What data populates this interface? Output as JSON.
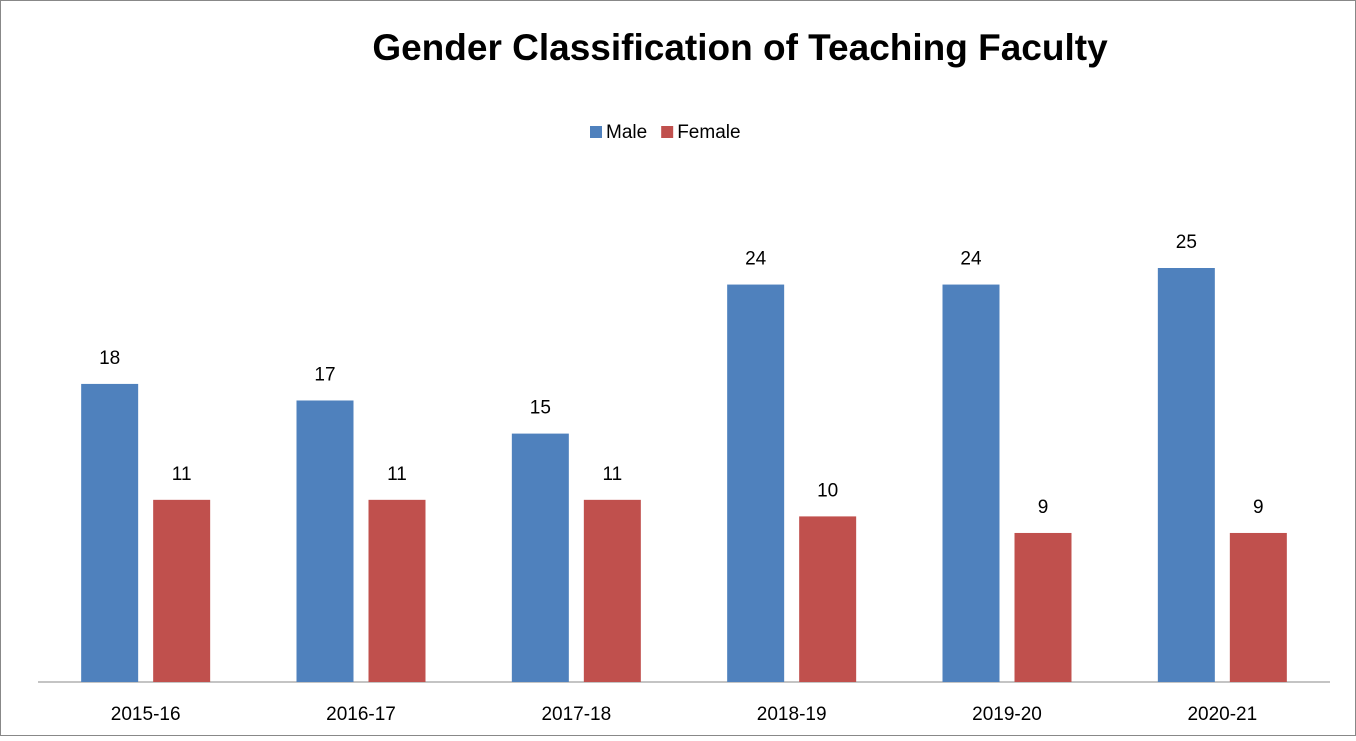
{
  "chart_data": {
    "type": "bar",
    "title": "Gender Classification of Teaching Faculty",
    "categories": [
      "2015-16",
      "2016-17",
      "2017-18",
      "2018-19",
      "2019-20",
      "2020-21"
    ],
    "series": [
      {
        "name": "Male",
        "color": "#4f81bd",
        "values": [
          18,
          17,
          15,
          24,
          24,
          25
        ]
      },
      {
        "name": "Female",
        "color": "#c0504d",
        "values": [
          11,
          11,
          11,
          10,
          9,
          9
        ]
      }
    ],
    "legend": "top"
  }
}
